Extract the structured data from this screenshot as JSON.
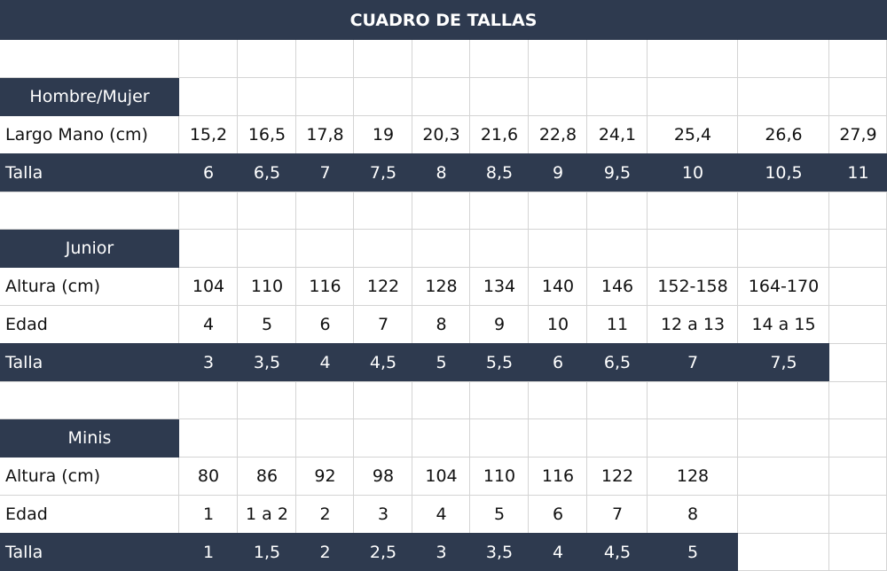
{
  "title": "CUADRO DE TALLAS",
  "sections": [
    {
      "heading": "Hombre/Mujer",
      "rows": [
        {
          "label": "Largo Mano (cm)",
          "cells": [
            "15,2",
            "16,5",
            "17,8",
            "19",
            "20,3",
            "21,6",
            "22,8",
            "24,1",
            "25,4",
            "26,6",
            "27,9"
          ]
        },
        {
          "label": "Talla",
          "cells": [
            "6",
            "6,5",
            "7",
            "7,5",
            "8",
            "8,5",
            "9",
            "9,5",
            "10",
            "10,5",
            "11"
          ]
        }
      ]
    },
    {
      "heading": "Junior",
      "rows": [
        {
          "label": "Altura (cm)",
          "cells": [
            "104",
            "110",
            "116",
            "122",
            "128",
            "134",
            "140",
            "146",
            "152-158",
            "164-170"
          ]
        },
        {
          "label": "Edad",
          "cells": [
            "4",
            "5",
            "6",
            "7",
            "8",
            "9",
            "10",
            "11",
            "12 a 13",
            "14 a 15"
          ]
        },
        {
          "label": "Talla",
          "cells": [
            "3",
            "3,5",
            "4",
            "4,5",
            "5",
            "5,5",
            "6",
            "6,5",
            "7",
            "7,5"
          ]
        }
      ]
    },
    {
      "heading": "Minis",
      "rows": [
        {
          "label": "Altura (cm)",
          "cells": [
            "80",
            "86",
            "92",
            "98",
            "104",
            "110",
            "116",
            "122",
            "128"
          ]
        },
        {
          "label": "Edad",
          "cells": [
            "1",
            "1 a 2",
            "2",
            "3",
            "4",
            "5",
            "6",
            "7",
            "8"
          ]
        },
        {
          "label": "Talla",
          "cells": [
            "1",
            "1,5",
            "2",
            "2,5",
            "3",
            "3,5",
            "4",
            "4,5",
            "5"
          ]
        }
      ]
    }
  ]
}
